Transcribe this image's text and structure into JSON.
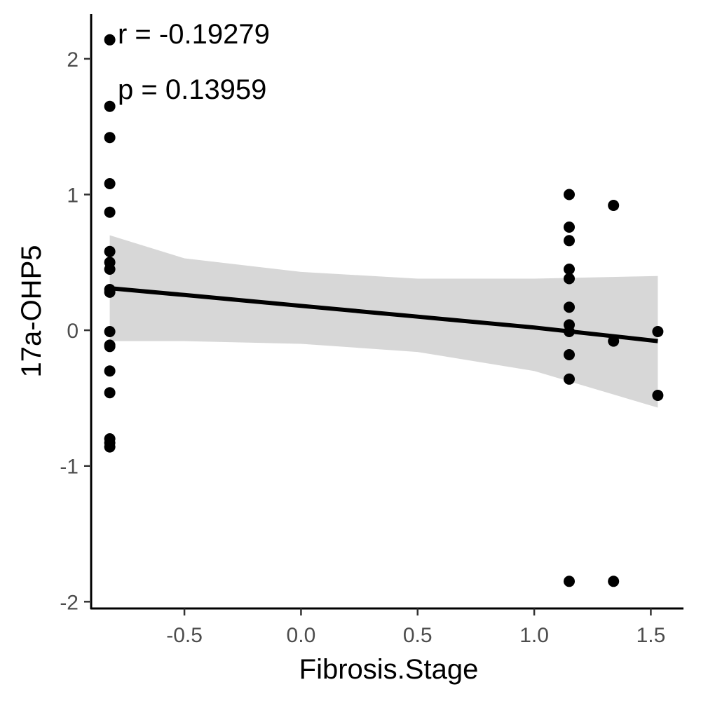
{
  "chart_data": {
    "type": "scatter",
    "title": "",
    "xlabel": "Fibrosis.Stage",
    "ylabel": "17a-OHP5",
    "xlim": [
      -0.9,
      1.64
    ],
    "ylim": [
      -2.05,
      2.33
    ],
    "x_ticks": [
      -0.5,
      0.0,
      0.5,
      1.0,
      1.5
    ],
    "x_tick_labels": [
      "-0.5",
      "0.0",
      "0.5",
      "1.0",
      "1.5"
    ],
    "y_ticks": [
      -2,
      -1,
      0,
      1,
      2
    ],
    "y_tick_labels": [
      "-2",
      "-1",
      "0",
      "1",
      "2"
    ],
    "grid": false,
    "annotations": [
      "r = -0.19279",
      "p = 0.13959"
    ],
    "points": [
      {
        "x": -0.82,
        "y": 2.14
      },
      {
        "x": -0.82,
        "y": 1.65
      },
      {
        "x": -0.82,
        "y": 1.42
      },
      {
        "x": -0.82,
        "y": 1.08
      },
      {
        "x": -0.82,
        "y": 0.87
      },
      {
        "x": -0.82,
        "y": 0.58
      },
      {
        "x": -0.82,
        "y": 0.5
      },
      {
        "x": -0.82,
        "y": 0.45
      },
      {
        "x": -0.82,
        "y": 0.3
      },
      {
        "x": -0.82,
        "y": 0.28
      },
      {
        "x": -0.82,
        "y": -0.01
      },
      {
        "x": -0.82,
        "y": -0.11
      },
      {
        "x": -0.82,
        "y": -0.12
      },
      {
        "x": -0.82,
        "y": -0.3
      },
      {
        "x": -0.82,
        "y": -0.46
      },
      {
        "x": -0.82,
        "y": -0.8
      },
      {
        "x": -0.82,
        "y": -0.83
      },
      {
        "x": -0.82,
        "y": -0.86
      },
      {
        "x": 1.15,
        "y": 1.0
      },
      {
        "x": 1.15,
        "y": 0.76
      },
      {
        "x": 1.15,
        "y": 0.66
      },
      {
        "x": 1.15,
        "y": 0.45
      },
      {
        "x": 1.15,
        "y": 0.38
      },
      {
        "x": 1.15,
        "y": 0.17
      },
      {
        "x": 1.15,
        "y": 0.04
      },
      {
        "x": 1.15,
        "y": -0.01
      },
      {
        "x": 1.15,
        "y": -0.18
      },
      {
        "x": 1.15,
        "y": -0.36
      },
      {
        "x": 1.15,
        "y": -1.85
      },
      {
        "x": 1.34,
        "y": 0.92
      },
      {
        "x": 1.34,
        "y": -0.08
      },
      {
        "x": 1.34,
        "y": -1.85
      },
      {
        "x": 1.53,
        "y": -0.01
      },
      {
        "x": 1.53,
        "y": -0.48
      }
    ],
    "fit": {
      "x": [
        -0.82,
        -0.5,
        0.0,
        0.5,
        1.0,
        1.53
      ],
      "y": [
        0.31,
        0.26,
        0.18,
        0.1,
        0.02,
        -0.08
      ],
      "ci_lower": [
        -0.08,
        -0.08,
        -0.1,
        -0.16,
        -0.3,
        -0.57
      ],
      "ci_upper": [
        0.7,
        0.53,
        0.43,
        0.38,
        0.38,
        0.4
      ]
    },
    "colors": {
      "points": "#000000",
      "fit_line": "#000000",
      "ci_band": "#d3d3d3",
      "axis": "#000000",
      "tick_label": "#4d4d4d"
    }
  }
}
